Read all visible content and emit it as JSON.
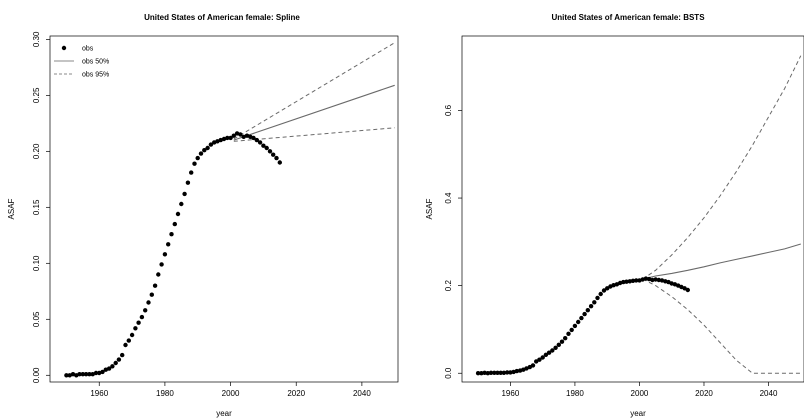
{
  "chart_data": [
    {
      "type": "line",
      "title": "United States of American female: Spline",
      "xlabel": "year",
      "ylabel": "ASAF",
      "xlim": [
        1945,
        2051
      ],
      "ylim": [
        -0.006,
        0.303
      ],
      "xticks": [
        "1960",
        "1980",
        "2000",
        "2020",
        "2040"
      ],
      "yticks": [
        "0.00",
        "0.05",
        "0.10",
        "0.15",
        "0.20",
        "0.25",
        "0.30"
      ],
      "legend": {
        "position": "top-left",
        "entries": [
          "obs",
          "obs 50%",
          "obs 95%"
        ]
      },
      "series": [
        {
          "name": "obs",
          "x": [
            1950,
            1951,
            1952,
            1953,
            1954,
            1955,
            1956,
            1957,
            1958,
            1959,
            1960,
            1961,
            1962,
            1963,
            1964,
            1965,
            1966,
            1967,
            1968,
            1969,
            1970,
            1971,
            1972,
            1973,
            1974,
            1975,
            1976,
            1977,
            1978,
            1979,
            1980,
            1981,
            1982,
            1983,
            1984,
            1985,
            1986,
            1987,
            1988,
            1989,
            1990,
            1991,
            1992,
            1993,
            1994,
            1995,
            1996,
            1997,
            1998,
            1999,
            2000,
            2001,
            2002,
            2003,
            2004,
            2005,
            2006,
            2007,
            2008,
            2009,
            2010,
            2011,
            2012,
            2013,
            2014,
            2015
          ],
          "values": [
            0.0,
            0.0,
            0.001,
            0.0,
            0.001,
            0.001,
            0.001,
            0.001,
            0.001,
            0.002,
            0.002,
            0.003,
            0.005,
            0.006,
            0.008,
            0.011,
            0.014,
            0.018,
            0.027,
            0.031,
            0.036,
            0.042,
            0.047,
            0.052,
            0.058,
            0.065,
            0.072,
            0.08,
            0.09,
            0.099,
            0.108,
            0.117,
            0.126,
            0.135,
            0.144,
            0.153,
            0.162,
            0.172,
            0.181,
            0.189,
            0.194,
            0.198,
            0.201,
            0.203,
            0.206,
            0.208,
            0.209,
            0.21,
            0.211,
            0.212,
            0.212,
            0.214,
            0.216,
            0.215,
            0.213,
            0.214,
            0.213,
            0.212,
            0.21,
            0.208,
            0.205,
            0.203,
            0.2,
            0.197,
            0.194,
            0.19
          ]
        },
        {
          "name": "obs 50%",
          "x": [
            2001,
            2050
          ],
          "values": [
            0.21,
            0.259
          ]
        },
        {
          "name": "obs 95%",
          "bands": [
            {
              "x": [
                2001,
                2050
              ],
              "values": [
                0.211,
                0.297
              ]
            },
            {
              "x": [
                2001,
                2050
              ],
              "values": [
                0.209,
                0.221
              ]
            }
          ]
        }
      ]
    },
    {
      "type": "line",
      "title": "United States of American female: BSTS",
      "xlabel": "year",
      "ylabel": "ASAF",
      "xlim": [
        1945,
        2051
      ],
      "ylim": [
        -0.02,
        0.77
      ],
      "xticks": [
        "1960",
        "1980",
        "2000",
        "2020",
        "2040"
      ],
      "yticks": [
        "0.0",
        "0.2",
        "0.4",
        "0.6"
      ],
      "series": [
        {
          "name": "obs",
          "x": [
            1950,
            1951,
            1952,
            1953,
            1954,
            1955,
            1956,
            1957,
            1958,
            1959,
            1960,
            1961,
            1962,
            1963,
            1964,
            1965,
            1966,
            1967,
            1968,
            1969,
            1970,
            1971,
            1972,
            1973,
            1974,
            1975,
            1976,
            1977,
            1978,
            1979,
            1980,
            1981,
            1982,
            1983,
            1984,
            1985,
            1986,
            1987,
            1988,
            1989,
            1990,
            1991,
            1992,
            1993,
            1994,
            1995,
            1996,
            1997,
            1998,
            1999,
            2000,
            2001,
            2002,
            2003,
            2004,
            2005,
            2006,
            2007,
            2008,
            2009,
            2010,
            2011,
            2012,
            2013,
            2014,
            2015
          ],
          "values": [
            0.0,
            0.0,
            0.001,
            0.0,
            0.001,
            0.001,
            0.001,
            0.001,
            0.001,
            0.002,
            0.002,
            0.003,
            0.005,
            0.006,
            0.008,
            0.011,
            0.014,
            0.018,
            0.027,
            0.031,
            0.036,
            0.042,
            0.047,
            0.052,
            0.058,
            0.065,
            0.072,
            0.08,
            0.09,
            0.099,
            0.108,
            0.117,
            0.126,
            0.135,
            0.144,
            0.153,
            0.162,
            0.172,
            0.181,
            0.189,
            0.194,
            0.198,
            0.201,
            0.203,
            0.206,
            0.208,
            0.209,
            0.21,
            0.211,
            0.212,
            0.212,
            0.214,
            0.216,
            0.215,
            0.213,
            0.214,
            0.213,
            0.212,
            0.21,
            0.208,
            0.205,
            0.203,
            0.2,
            0.197,
            0.194,
            0.19
          ]
        },
        {
          "name": "obs 50%",
          "x": [
            2001,
            2005,
            2010,
            2015,
            2020,
            2025,
            2030,
            2035,
            2040,
            2045,
            2050
          ],
          "values": [
            0.215,
            0.222,
            0.228,
            0.235,
            0.243,
            0.252,
            0.26,
            0.268,
            0.276,
            0.284,
            0.295
          ]
        },
        {
          "name": "obs 95%",
          "bands": [
            {
              "x": [
                2001,
                2005,
                2010,
                2015,
                2020,
                2025,
                2030,
                2035,
                2040,
                2045,
                2050
              ],
              "values": [
                0.215,
                0.235,
                0.27,
                0.31,
                0.355,
                0.405,
                0.46,
                0.52,
                0.585,
                0.65,
                0.725
              ]
            },
            {
              "x": [
                2001,
                2005,
                2010,
                2015,
                2020,
                2025,
                2030,
                2035,
                2040,
                2045,
                2050
              ],
              "values": [
                0.215,
                0.2,
                0.175,
                0.145,
                0.11,
                0.07,
                0.03,
                0.0,
                0.0,
                0.0,
                0.0
              ]
            }
          ]
        }
      ]
    }
  ]
}
